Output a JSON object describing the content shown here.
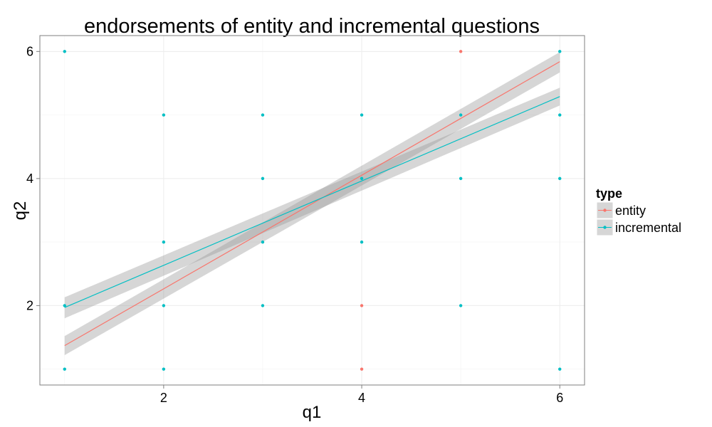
{
  "chart_data": {
    "type": "scatter",
    "title": "endorsements of entity and incremental questions",
    "xlabel": "q1",
    "ylabel": "q2",
    "xlim": [
      0.75,
      6.25
    ],
    "ylim": [
      0.75,
      6.25
    ],
    "xticks": [
      2,
      4,
      6
    ],
    "yticks": [
      2,
      4,
      6
    ],
    "grid": true,
    "legend": {
      "title": "type",
      "position": "right",
      "entries": [
        "entity",
        "incremental"
      ]
    },
    "series": [
      {
        "name": "entity",
        "color": "#F8766D",
        "points": [
          {
            "x": 5,
            "y": 6
          },
          {
            "x": 4,
            "y": 2
          },
          {
            "x": 4,
            "y": 1
          }
        ],
        "fit": {
          "x": [
            1,
            6
          ],
          "y": [
            1.37,
            5.84
          ],
          "se_lower": [
            1.22,
            5.67
          ],
          "se_upper": [
            1.52,
            5.99
          ]
        }
      },
      {
        "name": "incremental",
        "color": "#00BFC4",
        "points": [
          {
            "x": 1,
            "y": 6
          },
          {
            "x": 1,
            "y": 2
          },
          {
            "x": 1,
            "y": 1
          },
          {
            "x": 2,
            "y": 5
          },
          {
            "x": 2,
            "y": 3
          },
          {
            "x": 2,
            "y": 2
          },
          {
            "x": 2,
            "y": 1
          },
          {
            "x": 3,
            "y": 5
          },
          {
            "x": 3,
            "y": 4
          },
          {
            "x": 3,
            "y": 3
          },
          {
            "x": 3,
            "y": 2
          },
          {
            "x": 4,
            "y": 5
          },
          {
            "x": 4,
            "y": 4
          },
          {
            "x": 4,
            "y": 3
          },
          {
            "x": 5,
            "y": 5
          },
          {
            "x": 5,
            "y": 4
          },
          {
            "x": 5,
            "y": 2
          },
          {
            "x": 6,
            "y": 6
          },
          {
            "x": 6,
            "y": 5
          },
          {
            "x": 6,
            "y": 4
          },
          {
            "x": 6,
            "y": 1
          }
        ],
        "fit": {
          "x": [
            1,
            6
          ],
          "y": [
            1.97,
            5.29
          ],
          "se_lower": [
            1.8,
            5.15
          ],
          "se_upper": [
            2.13,
            5.43
          ]
        }
      }
    ]
  }
}
